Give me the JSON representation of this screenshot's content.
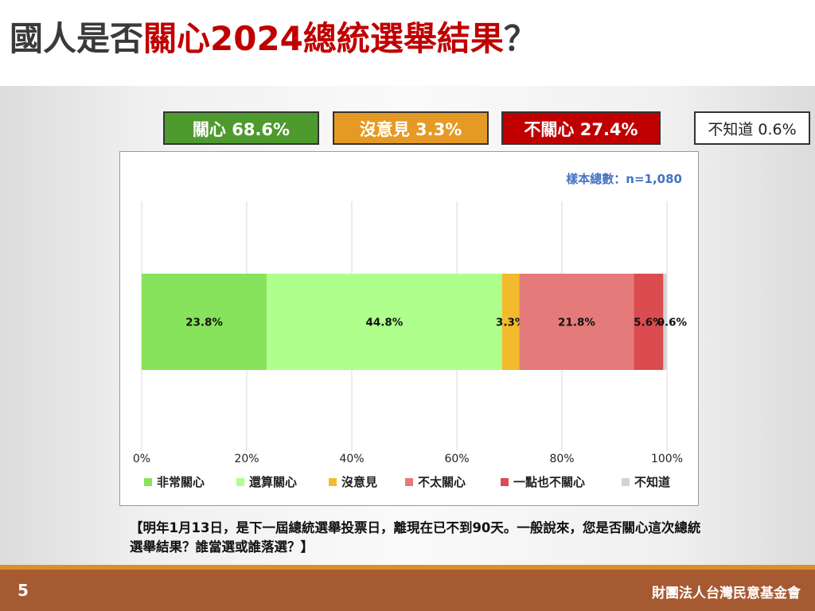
{
  "title": {
    "part1": "國人是否",
    "part2": "關心2024總統選舉結果",
    "part3": "？"
  },
  "summary": {
    "care": "關心 68.6%",
    "neutral": "沒意見 3.3%",
    "not_care": "不關心 27.4%",
    "dont_know": "不知道 0.6%"
  },
  "colors": {
    "care_box": "#4f9a2f",
    "neutral_box": "#e49a24",
    "not_care_box": "#c00000",
    "sample_text": "#4472c4"
  },
  "chart_data": {
    "type": "bar",
    "orientation": "horizontal-stacked-100",
    "sample_size_label": "樣本總數：n=1,080",
    "x_ticks": [
      "0%",
      "20%",
      "40%",
      "60%",
      "80%",
      "100%"
    ],
    "xlim": [
      0,
      100
    ],
    "grid": true,
    "legend_position": "bottom",
    "series": [
      {
        "name": "非常關心",
        "value": 23.8,
        "label": "23.8%",
        "color": "#86e35b"
      },
      {
        "name": "還算關心",
        "value": 44.8,
        "label": "44.8%",
        "color": "#aeff8c"
      },
      {
        "name": "沒意見",
        "value": 3.3,
        "label": "3.3%",
        "color": "#f1bb2c"
      },
      {
        "name": "不太關心",
        "value": 21.8,
        "label": "21.8%",
        "color": "#e57a7a"
      },
      {
        "name": "一點也不關心",
        "value": 5.6,
        "label": "5.6%",
        "color": "#da4c4f"
      },
      {
        "name": "不知道",
        "value": 0.6,
        "label": "0.6%",
        "color": "#d3d3d3"
      }
    ]
  },
  "question": "【明年1月13日，是下一屆總統選舉投票日，離現在已不到90天。一般說來，您是否關心這次總統選舉結果？誰當選或誰落選？】",
  "footer": {
    "page": "5",
    "org": "財團法人台灣民意基金會"
  }
}
